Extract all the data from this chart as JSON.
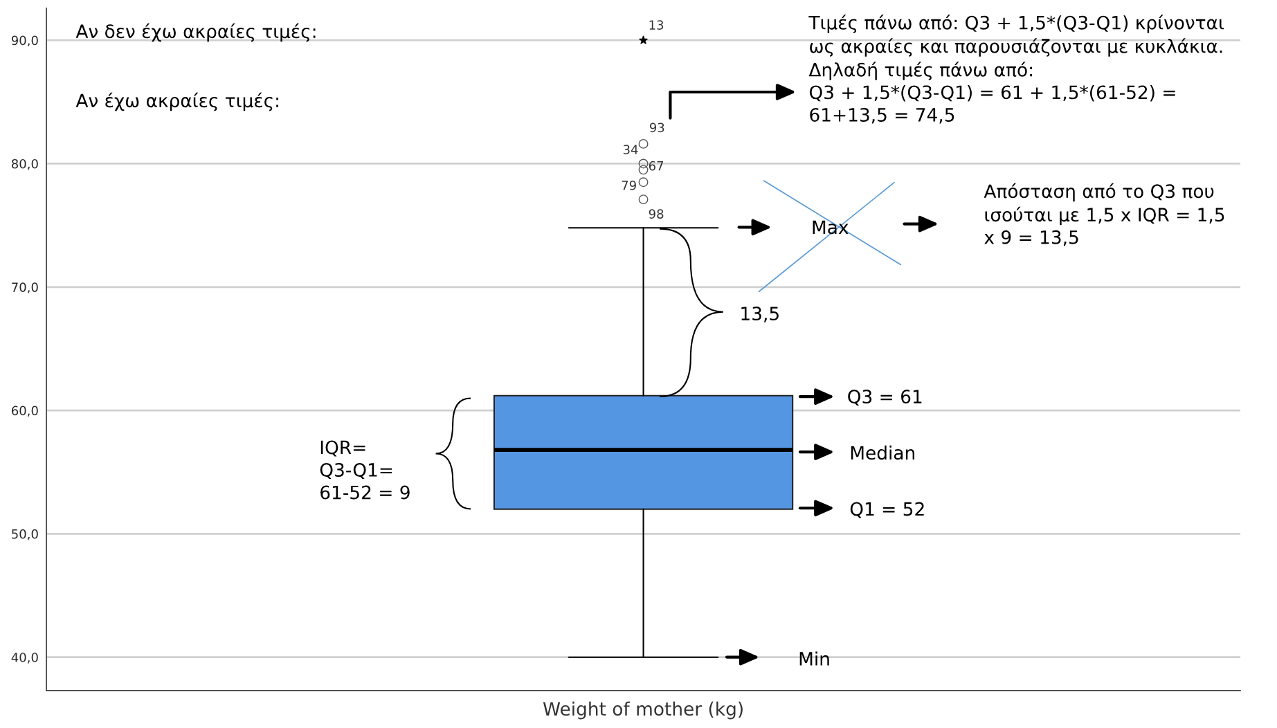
{
  "chart_data": {
    "type": "box",
    "categories": [
      null
    ],
    "xlabel": "Weight of mother (kg)",
    "color": "#5596e3",
    "boxes": [
      {
        "low": 40.0,
        "q1": 52.0,
        "median": 56.8,
        "q3": 61.2,
        "high": 74.8,
        "outliers": [
          81.6,
          80.0,
          79.5,
          78.5,
          77.1
        ]
      }
    ],
    "series": [
      {
        "type": "scatter",
        "marker": "star",
        "values": [
          90.0
        ],
        "color": "#000000"
      }
    ],
    "ylim": [
      37.3,
      92.6
    ],
    "yticks": [
      {
        "value": 40,
        "label": "40,0"
      },
      {
        "value": 50,
        "label": "50,0"
      },
      {
        "value": 60,
        "label": "60,0"
      },
      {
        "value": 70,
        "label": "70,0"
      },
      {
        "value": 80,
        "label": "80,0"
      },
      {
        "value": 90,
        "label": "90,0"
      }
    ],
    "grid": "y",
    "annotations": [
      "Αν δεν έχω ακραίες τιμές:",
      "Αν έχω ακραίες τιμές:",
      "Τιμές πάνω από: Q3 + 1,5*(Q3-Q1) κρίνονται\nως ακραίες και παρουσιάζονται με κυκλάκια.\nΔηλαδή τιμές πάνω από:\nQ3 + 1,5*(Q3-Q1) = 61 + 1,5*(61-52) =\n61+13,5 = 74,5",
      "Απόσταση από το Q3 που\nισούται με 1,5 x IQR = 1,5\nx 9 = 13,5",
      "Max",
      "13,5",
      "Q3 = 61",
      "Median",
      "Q1 = 52",
      "IQR=\nQ3-Q1=\n61-52 = 9",
      "Min",
      "13",
      "93",
      "34",
      "67",
      "79",
      "98"
    ]
  }
}
